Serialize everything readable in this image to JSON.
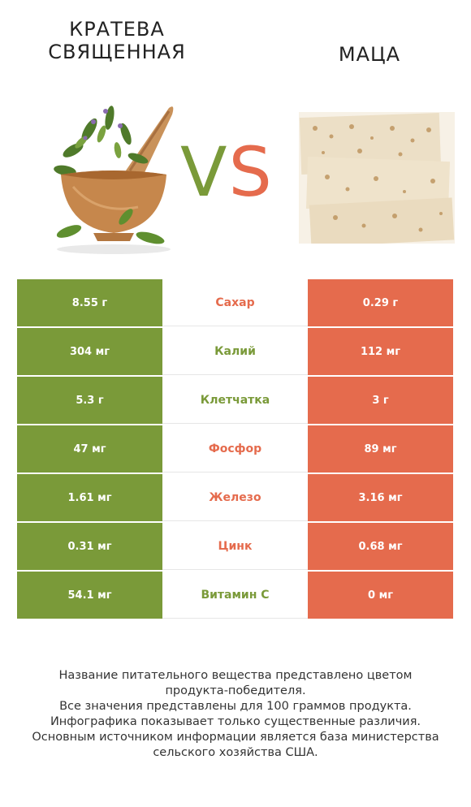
{
  "header": {
    "left_title_line1": "КРАТЕВА",
    "left_title_line2": "СВЯЩЕННАЯ",
    "right_title": "МАЦА",
    "vs_v": "V",
    "vs_s": "S"
  },
  "colors": {
    "left_product": "#7a9a39",
    "right_product": "#e56b4d"
  },
  "images": {
    "left": "herbs-mortar-pestle-image",
    "right": "matzah-crackers-image"
  },
  "rows": [
    {
      "left": "8.55 г",
      "nutrient": "Сахар",
      "right": "0.29 г",
      "winner": "right"
    },
    {
      "left": "304 мг",
      "nutrient": "Калий",
      "right": "112 мг",
      "winner": "left"
    },
    {
      "left": "5.3 г",
      "nutrient": "Клетчатка",
      "right": "3 г",
      "winner": "left"
    },
    {
      "left": "47 мг",
      "nutrient": "Фосфор",
      "right": "89 мг",
      "winner": "right"
    },
    {
      "left": "1.61 мг",
      "nutrient": "Железо",
      "right": "3.16 мг",
      "winner": "right"
    },
    {
      "left": "0.31 мг",
      "nutrient": "Цинк",
      "right": "0.68 мг",
      "winner": "right"
    },
    {
      "left": "54.1 мг",
      "nutrient": "Витамин C",
      "right": "0 мг",
      "winner": "left"
    }
  ],
  "footer": {
    "line1": "Название питательного вещества представлено цветом",
    "line2": "продукта-победителя.",
    "line3": "Все значения представлены для 100 граммов продукта.",
    "line4": "Инфографика показывает только существенные различия.",
    "line5": "Основным источником информации является база министерства",
    "line6": "сельского хозяйства США."
  }
}
